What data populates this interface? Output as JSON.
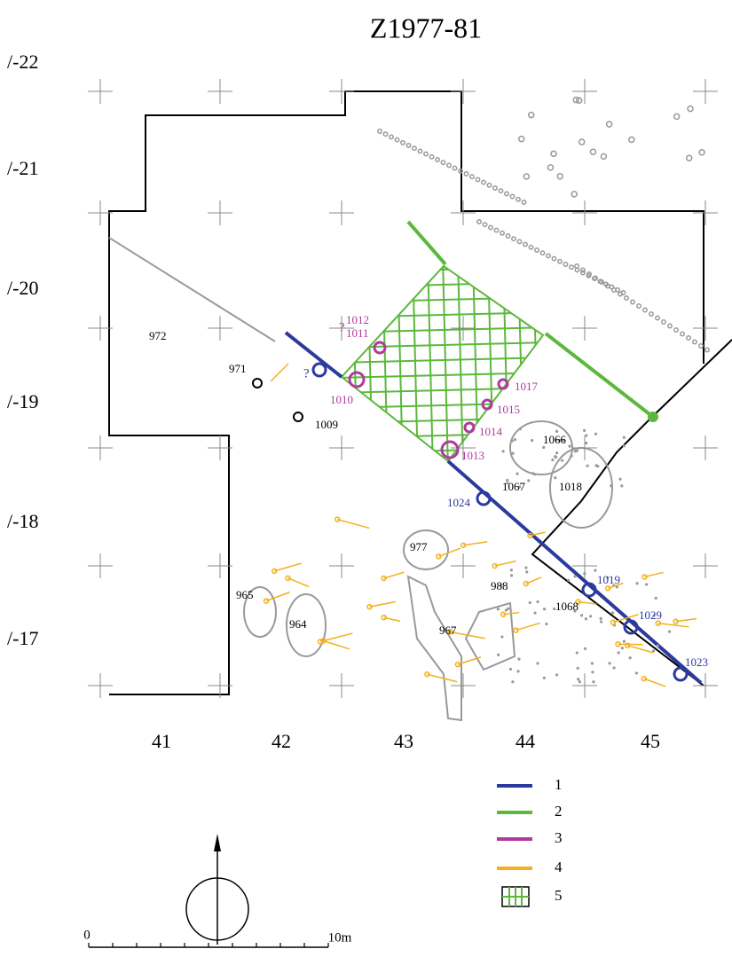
{
  "title": "Z1977-81",
  "rows": [
    "/-22",
    "/-21",
    "/-20",
    "/-19",
    "/-18",
    "/-17"
  ],
  "columns": [
    "41",
    "42",
    "43",
    "44",
    "45"
  ],
  "features": [
    {
      "label": "972",
      "color": "#000000"
    },
    {
      "label": "971",
      "color": "#000000"
    },
    {
      "label": "1009",
      "color": "#000000"
    },
    {
      "label": "?",
      "color": "#b03a9e"
    },
    {
      "label": "1012",
      "color": "#b03a9e"
    },
    {
      "label": "1011",
      "color": "#b03a9e"
    },
    {
      "label": "1010",
      "color": "#b03a9e"
    },
    {
      "label": "?",
      "color": "#2b3a9e"
    },
    {
      "label": "1017",
      "color": "#b03a9e"
    },
    {
      "label": "1015",
      "color": "#b03a9e"
    },
    {
      "label": "1014",
      "color": "#b03a9e"
    },
    {
      "label": "1013",
      "color": "#b03a9e"
    },
    {
      "label": "1066",
      "color": "#000000"
    },
    {
      "label": "1067",
      "color": "#000000"
    },
    {
      "label": "1018",
      "color": "#000000"
    },
    {
      "label": "1024",
      "color": "#2b3a9e"
    },
    {
      "label": "977",
      "color": "#000000"
    },
    {
      "label": "988",
      "color": "#000000"
    },
    {
      "label": "1068",
      "color": "#000000"
    },
    {
      "label": "965",
      "color": "#000000"
    },
    {
      "label": "964",
      "color": "#000000"
    },
    {
      "label": "967",
      "color": "#000000"
    },
    {
      "label": "1019",
      "color": "#2b3a9e"
    },
    {
      "label": "1029",
      "color": "#2b3a9e"
    },
    {
      "label": "1023",
      "color": "#2b3a9e"
    }
  ],
  "legend": [
    {
      "label": "1",
      "color": "#2b3a9e"
    },
    {
      "label": "2",
      "color": "#5cb83c"
    },
    {
      "label": "3",
      "color": "#b03a9e"
    },
    {
      "label": "4",
      "color": "#f2b01e"
    },
    {
      "label": "5",
      "color": "#5cb83c"
    }
  ],
  "scale": {
    "start": "0",
    "end": "10m"
  }
}
